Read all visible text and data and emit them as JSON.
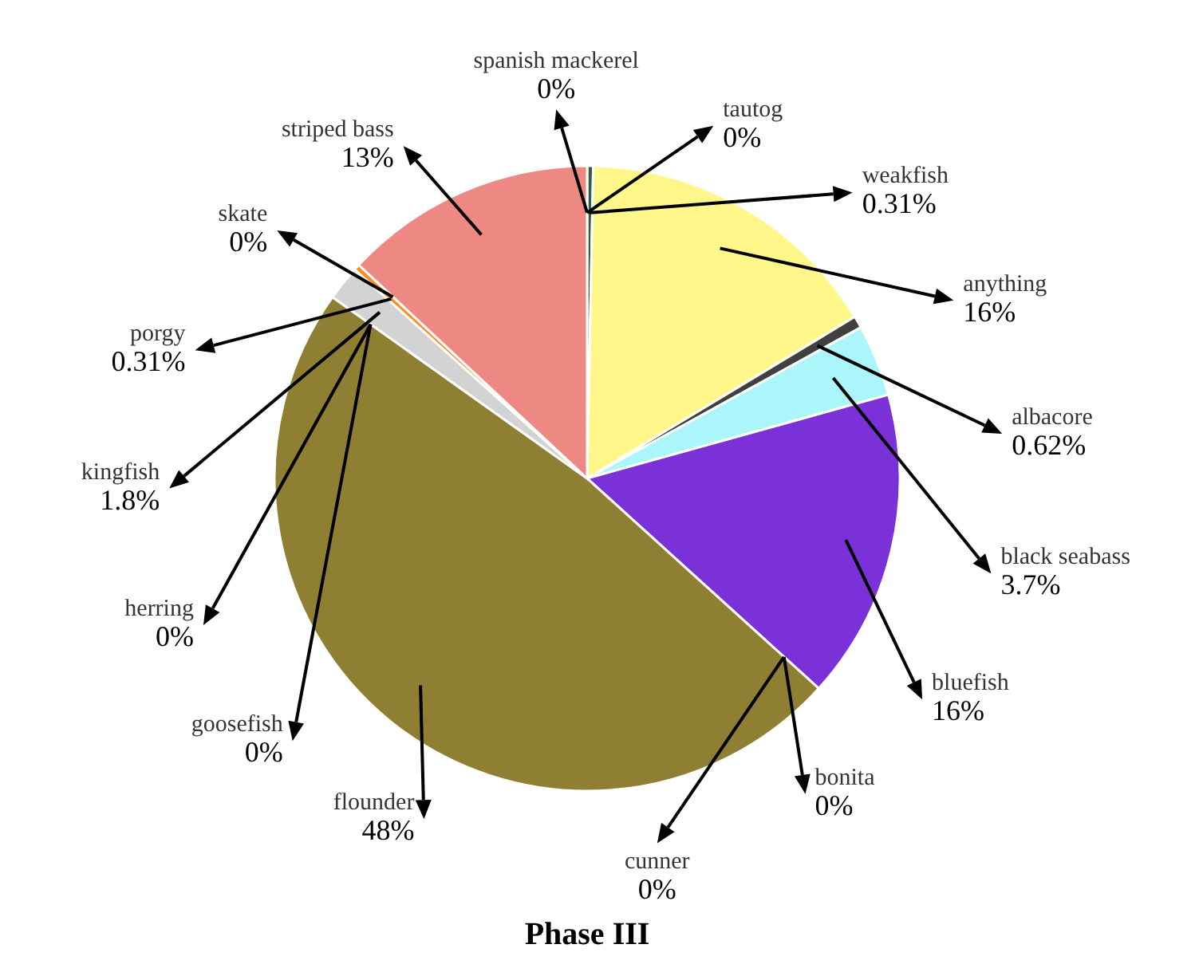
{
  "chart_data": {
    "type": "pie",
    "title": "Phase III",
    "categories": [
      "spanish mackerel",
      "tautog",
      "weakfish",
      "anything",
      "albacore",
      "black seabass",
      "bluefish",
      "bonita",
      "cunner",
      "flounder",
      "goosefish",
      "herring",
      "kingfish",
      "porgy",
      "skate",
      "striped bass"
    ],
    "values": [
      0,
      0,
      0.31,
      16,
      0.62,
      3.7,
      16,
      0,
      0,
      48,
      0,
      0,
      1.8,
      0.31,
      0,
      13
    ],
    "value_labels": [
      "0%",
      "0%",
      "0.31%",
      "16%",
      "0.62%",
      "3.7%",
      "16%",
      "0%",
      "0%",
      "48%",
      "0%",
      "0%",
      "1.8%",
      "0.31%",
      "0%",
      "13%"
    ],
    "colors": [
      "#1b7a1b",
      "#7f7f7f",
      "#2f5f3f",
      "#fff78a",
      "#404040",
      "#aaf6fa",
      "#7a32d8",
      "#e0245e",
      "#8b1010",
      "#8f7f32",
      "#e0245e",
      "#1f8f1f",
      "#d3d3d3",
      "#ff8c1a",
      "#a040e0",
      "#ee8882"
    ]
  }
}
